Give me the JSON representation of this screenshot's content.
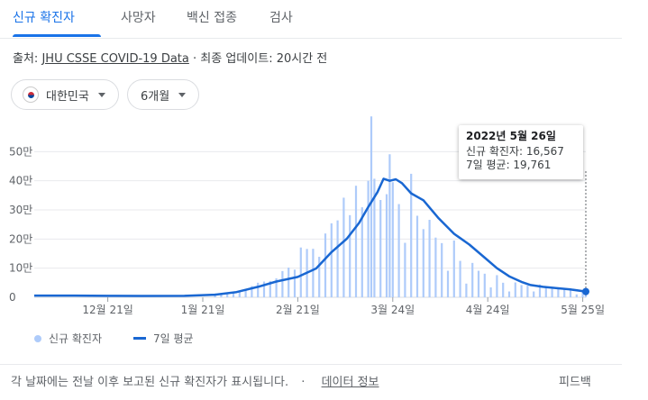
{
  "tabs": [
    {
      "label": "신규 확진자",
      "active": true
    },
    {
      "label": "사망자",
      "active": false
    },
    {
      "label": "백신 접종",
      "active": false
    },
    {
      "label": "검사",
      "active": false
    }
  ],
  "source": {
    "prefix": "출처:",
    "link_text": "JHU CSSE COVID-19 Data",
    "separator": "·",
    "updated": "최종 업데이트: 20시간 전"
  },
  "filters": {
    "country": {
      "label": "대한민국",
      "icon": "korea-flag-icon"
    },
    "period": {
      "label": "6개월",
      "icon": "chevron-down-icon"
    }
  },
  "tooltip": {
    "date": "2022년 5월 26일",
    "cases_label": "신규 확진자: 16,567",
    "avg_label": "7일 평균: 19,761"
  },
  "chart_data": {
    "type": "bar",
    "title": "",
    "xlabel": "",
    "ylabel": "",
    "ylim": [
      0,
      600000
    ],
    "y_ticks": [
      0,
      100000,
      200000,
      300000,
      400000,
      500000
    ],
    "y_tick_labels": [
      "0",
      "10만",
      "20만",
      "30만",
      "40만",
      "50만"
    ],
    "x_tick_labels": [
      "12월 21일",
      "1월 21일",
      "2월 21일",
      "3월 24일",
      "4월 24일",
      "5월 25일"
    ],
    "x_tick_dates": [
      "2021-12-21",
      "2022-01-21",
      "2022-02-21",
      "2022-03-24",
      "2022-04-24",
      "2022-05-25"
    ],
    "x_range": [
      "2021-11-27",
      "2022-05-26"
    ],
    "grid": true,
    "legend": "bottom-left",
    "series": [
      {
        "name": "신규 확진자",
        "style": "bar",
        "color": "#aecbfa",
        "x": [
          "2022-01-25",
          "2022-01-27",
          "2022-01-29",
          "2022-01-31",
          "2022-02-02",
          "2022-02-04",
          "2022-02-06",
          "2022-02-08",
          "2022-02-10",
          "2022-02-12",
          "2022-02-14",
          "2022-02-16",
          "2022-02-18",
          "2022-02-20",
          "2022-02-22",
          "2022-02-24",
          "2022-02-26",
          "2022-02-28",
          "2022-03-02",
          "2022-03-04",
          "2022-03-06",
          "2022-03-08",
          "2022-03-10",
          "2022-03-12",
          "2022-03-14",
          "2022-03-16",
          "2022-03-17",
          "2022-03-18",
          "2022-03-20",
          "2022-03-22",
          "2022-03-23",
          "2022-03-24",
          "2022-03-26",
          "2022-03-28",
          "2022-03-30",
          "2022-04-01",
          "2022-04-03",
          "2022-04-05",
          "2022-04-07",
          "2022-04-09",
          "2022-04-11",
          "2022-04-13",
          "2022-04-15",
          "2022-04-17",
          "2022-04-19",
          "2022-04-21",
          "2022-04-23",
          "2022-04-25",
          "2022-04-27",
          "2022-04-29",
          "2022-05-01",
          "2022-05-03",
          "2022-05-05",
          "2022-05-07",
          "2022-05-09",
          "2022-05-11",
          "2022-05-13",
          "2022-05-15",
          "2022-05-17",
          "2022-05-19",
          "2022-05-21",
          "2022-05-23",
          "2022-05-25",
          "2022-05-26"
        ],
        "values": [
          13000,
          14500,
          17000,
          18000,
          20000,
          27000,
          38500,
          50000,
          54000,
          56000,
          65000,
          90000,
          102000,
          95000,
          171000,
          166000,
          166500,
          139000,
          219000,
          254000,
          264000,
          342000,
          282000,
          383000,
          309000,
          400000,
          621000,
          407000,
          334000,
          354000,
          491000,
          395000,
          320000,
          187000,
          424000,
          280000,
          234000,
          266000,
          205000,
          186000,
          91000,
          195000,
          125000,
          47000,
          118000,
          91000,
          81000,
          34000,
          76000,
          50000,
          20000,
          51000,
          42000,
          40000,
          20000,
          44000,
          33000,
          30000,
          30000,
          29000,
          30000,
          10000,
          23000,
          16567
        ]
      },
      {
        "name": "7일 평균",
        "style": "line",
        "color": "#1967d2",
        "x": [
          "2021-11-27",
          "2021-12-10",
          "2021-12-21",
          "2022-01-01",
          "2022-01-15",
          "2022-01-25",
          "2022-02-01",
          "2022-02-08",
          "2022-02-14",
          "2022-02-21",
          "2022-02-27",
          "2022-03-04",
          "2022-03-09",
          "2022-03-13",
          "2022-03-16",
          "2022-03-19",
          "2022-03-21",
          "2022-03-23",
          "2022-03-25",
          "2022-03-27",
          "2022-03-30",
          "2022-04-03",
          "2022-04-08",
          "2022-04-13",
          "2022-04-18",
          "2022-04-23",
          "2022-04-27",
          "2022-05-01",
          "2022-05-05",
          "2022-05-08",
          "2022-05-12",
          "2022-05-17",
          "2022-05-21",
          "2022-05-26"
        ],
        "values": [
          6000,
          6000,
          5000,
          4500,
          5000,
          9000,
          18000,
          36000,
          54000,
          70000,
          99000,
          155000,
          201000,
          255000,
          310000,
          361000,
          407000,
          400000,
          405000,
          392000,
          357000,
          333000,
          271000,
          218000,
          181000,
          136000,
          100000,
          72000,
          53000,
          42000,
          36000,
          31000,
          27000,
          19761
        ]
      }
    ]
  },
  "legend": [
    {
      "label": "신규 확진자",
      "icon": "bar-dot-icon"
    },
    {
      "label": "7일 평균",
      "icon": "line-icon"
    }
  ],
  "footer": {
    "note": "각 날짜에는 전날 이후 보고된 신규 확진자가 표시됩니다.",
    "separator": "·",
    "link_text": "데이터 정보",
    "feedback": "피드백"
  }
}
